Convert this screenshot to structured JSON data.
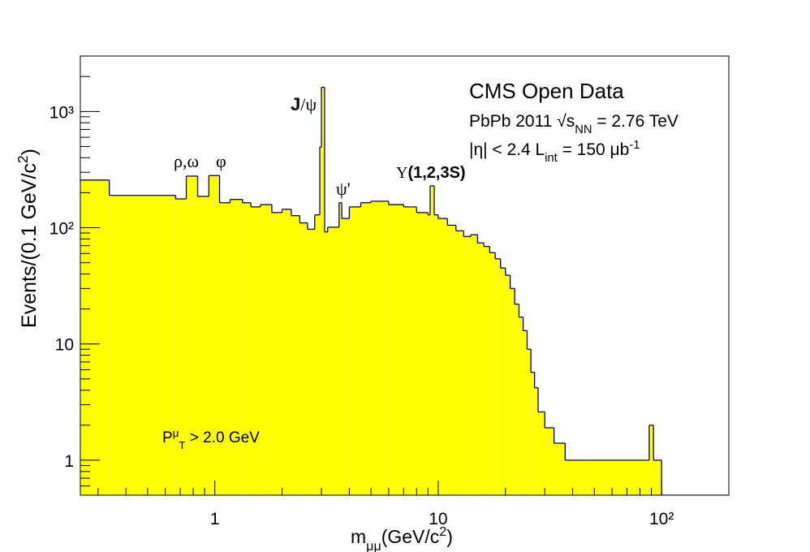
{
  "chart_data": {
    "type": "histogram",
    "log_x": true,
    "log_y": true,
    "xlim": [
      0.25,
      200
    ],
    "ylim": [
      0.5,
      3000
    ],
    "xticks": [
      1,
      10,
      {
        "value": 100,
        "label": "10²"
      }
    ],
    "yticks": [
      1,
      10,
      {
        "value": 100,
        "label": "10²"
      },
      {
        "value": 1000,
        "label": "10³"
      }
    ],
    "xminor": [
      0.3,
      0.4,
      0.5,
      0.6,
      0.7,
      0.8,
      0.9,
      2,
      3,
      4,
      5,
      6,
      7,
      8,
      9,
      20,
      30,
      40,
      50,
      60,
      70,
      80,
      90,
      200
    ],
    "yminor": [
      0.6,
      0.7,
      0.8,
      0.9,
      2,
      3,
      4,
      5,
      6,
      7,
      8,
      9,
      20,
      30,
      40,
      50,
      60,
      70,
      80,
      90,
      200,
      300,
      400,
      500,
      600,
      700,
      800,
      900,
      2000,
      3000
    ],
    "fill_color": "#ffff00",
    "line_color": "#00008b",
    "bins": [
      0.25,
      0.337,
      0.667,
      0.745,
      0.838,
      0.94,
      1.05,
      1.17,
      1.33,
      1.45,
      1.6,
      1.8,
      2.0,
      2.2,
      2.4,
      2.6,
      2.8,
      2.95,
      3.0,
      3.1,
      3.2,
      3.6,
      3.7,
      4.0,
      4.5,
      5,
      6,
      7,
      8,
      9,
      9.2,
      9.6,
      10,
      11,
      12,
      13,
      14,
      15,
      16,
      17,
      18,
      19,
      20,
      21,
      22,
      23,
      24,
      25,
      26,
      27,
      28,
      30,
      33,
      37,
      42,
      88,
      92,
      100,
      200
    ],
    "counts": [
      257,
      190,
      177,
      278,
      186,
      281,
      164,
      175,
      164,
      151,
      158,
      135,
      144,
      127,
      110,
      97,
      129,
      494,
      1615,
      92,
      101,
      164,
      120,
      151,
      164,
      169,
      158,
      151,
      135,
      129,
      229,
      129,
      120,
      105,
      94,
      84,
      87,
      74,
      69,
      61,
      54,
      45,
      39,
      30,
      22,
      17,
      13,
      9,
      5.7,
      4.2,
      2.6,
      1.9,
      1.4,
      1,
      1,
      2,
      1,
      0
    ],
    "x_label": [
      {
        "text": "m"
      },
      {
        "text": "μμ",
        "script": "sub"
      },
      {
        "text": "(GeV/c"
      },
      {
        "text": "2",
        "script": "sup"
      },
      {
        "text": ")"
      }
    ],
    "y_label": [
      {
        "text": "Events/(0.1 GeV/c"
      },
      {
        "text": "2",
        "script": "sup"
      },
      {
        "text": ")"
      }
    ],
    "annotations": [
      [
        {
          "text": "CMS Open Data"
        }
      ],
      [
        {
          "text": "PbPb 2011 √"
        },
        {
          "text": "s"
        },
        {
          "text": "NN",
          "script": "sub"
        },
        {
          "text": " = 2.76 TeV"
        }
      ],
      [
        {
          "text": "|η| < 2.4  L"
        },
        {
          "text": "int",
          "script": "sub"
        },
        {
          "text": " = 150 μb"
        },
        {
          "text": "-1",
          "script": "sup"
        }
      ],
      [
        {
          "text": "ρ,ω"
        }
      ],
      [
        {
          "text": "φ"
        }
      ],
      [
        {
          "text": "J",
          "bold": true
        },
        {
          "text": "/ψ"
        }
      ],
      [
        {
          "text": "ψ'"
        }
      ],
      [
        {
          "text": "Υ"
        },
        {
          "text": "(1,2,3S)",
          "bold": true
        }
      ],
      [
        {
          "text": "P"
        },
        {
          "text": "μ",
          "script": "sup"
        },
        {
          "text": "T",
          "script": "sub"
        },
        {
          "text": " > 2.0 GeV"
        }
      ]
    ]
  }
}
